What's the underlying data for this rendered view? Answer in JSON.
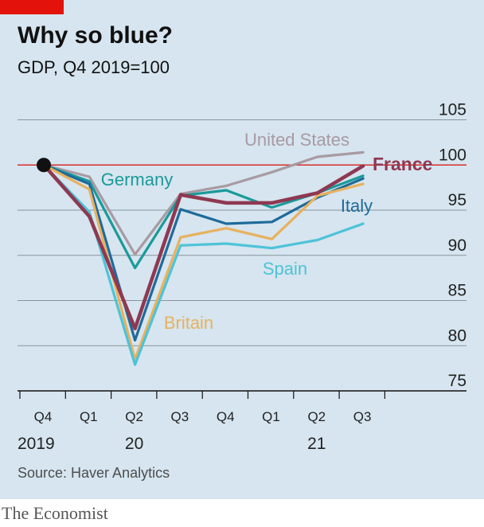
{
  "header": {
    "title": "Why so blue?",
    "subtitle": "GDP, Q4 2019=100"
  },
  "footer": {
    "source": "Source: Haver Analytics",
    "brand": "The Economist"
  },
  "colors": {
    "background": "#d6e5ef",
    "accent": "#e3120b",
    "reference_line": "#e3120b",
    "united_states": "#a89aa3",
    "france": "#8f3852",
    "germany": "#1a9a99",
    "italy": "#1f6a9a",
    "britain": "#e8b15e",
    "spain": "#4dc3d8"
  },
  "chart_data": {
    "type": "line",
    "x": [
      "Q4",
      "Q1",
      "Q2",
      "Q3",
      "Q4",
      "Q1",
      "Q2",
      "Q3"
    ],
    "year_labels": [
      {
        "label": "2019",
        "at": "Q4 2019"
      },
      {
        "label": "20",
        "at": "Q2 2020"
      },
      {
        "label": "21",
        "at": "Q2 2021"
      }
    ],
    "yticks": [
      75,
      80,
      85,
      90,
      95,
      100,
      105
    ],
    "ylim": [
      75,
      105
    ],
    "reference_value": 100,
    "start_point": 100,
    "series": [
      {
        "name": "United States",
        "color": "#a89aa3",
        "values": [
          100,
          98.7,
          90.1,
          96.8,
          97.7,
          99.2,
          100.9,
          101.4
        ]
      },
      {
        "name": "Germany",
        "color": "#1a9a99",
        "values": [
          100,
          98.2,
          88.6,
          96.6,
          97.2,
          95.3,
          96.9,
          98.8
        ]
      },
      {
        "name": "Italy",
        "color": "#1f6a9a",
        "values": [
          100,
          97.9,
          80.6,
          95.1,
          93.5,
          93.7,
          96.4,
          98.5
        ]
      },
      {
        "name": "Britain",
        "color": "#e8b15e",
        "values": [
          100,
          97.3,
          78.5,
          92.0,
          93.0,
          91.8,
          96.6,
          97.9
        ]
      },
      {
        "name": "Spain",
        "color": "#4dc3d8",
        "values": [
          100,
          94.8,
          77.9,
          91.1,
          91.3,
          90.8,
          91.7,
          93.5
        ]
      },
      {
        "name": "France",
        "color": "#8f3852",
        "values": [
          100,
          94.3,
          81.9,
          96.7,
          95.8,
          95.8,
          96.9,
          99.9
        ]
      }
    ]
  }
}
